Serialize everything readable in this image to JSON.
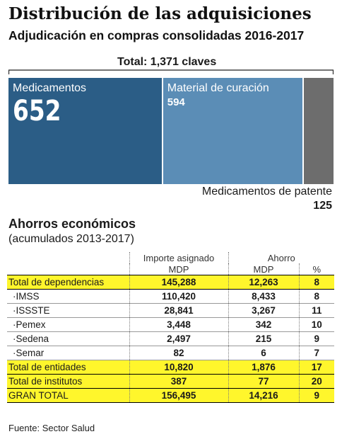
{
  "header": {
    "title": "Distribución de las adquisiciones",
    "subtitle": "Adjudicación en compras consolidadas 2016-2017",
    "total_label": "Total: 1,371 claves"
  },
  "chart_data": {
    "type": "bar",
    "title": "Distribución de las adquisiciones",
    "subtitle": "Adjudicación en compras consolidadas 2016-2017",
    "total": 1371,
    "categories": [
      "Medicamentos",
      "Material de curación",
      "Medicamentos de patente"
    ],
    "values": [
      652,
      594,
      125
    ],
    "display_values": [
      "652",
      "594",
      "125"
    ],
    "colors": [
      "#2b5d86",
      "#5b8db6",
      "#6d6d6d"
    ]
  },
  "savings": {
    "title": "Ahorros económicos",
    "subtitle": "(acumulados 2013-2017)",
    "col_importe": "Importe asignado",
    "col_ahorro": "Ahorro",
    "unit_importe": "MDP",
    "unit_ahorro": "MDP",
    "unit_pct": "%",
    "highlight_color": "#fff62c",
    "rows": [
      {
        "name": "Total de dependencias",
        "importe": "145,288",
        "ahorro": "12,263",
        "pct": "8",
        "highlight": true
      },
      {
        "name": "·IMSS",
        "importe": "110,420",
        "ahorro": "8,433",
        "pct": "8",
        "highlight": false
      },
      {
        "name": "·ISSSTE",
        "importe": "28,841",
        "ahorro": "3,267",
        "pct": "11",
        "highlight": false
      },
      {
        "name": "·Pemex",
        "importe": "3,448",
        "ahorro": "342",
        "pct": "10",
        "highlight": false
      },
      {
        "name": "·Sedena",
        "importe": "2,497",
        "ahorro": "215",
        "pct": "9",
        "highlight": false
      },
      {
        "name": "·Semar",
        "importe": "82",
        "ahorro": "6",
        "pct": "7",
        "highlight": false
      },
      {
        "name": "Total de entidades",
        "importe": "10,820",
        "ahorro": "1,876",
        "pct": "17",
        "highlight": true
      },
      {
        "name": "Total de institutos",
        "importe": "387",
        "ahorro": "77",
        "pct": "20",
        "highlight": true
      },
      {
        "name": "GRAN TOTAL",
        "importe": "156,495",
        "ahorro": "14,216",
        "pct": "9",
        "highlight": true
      }
    ]
  },
  "footer": {
    "source": "Fuente: Sector Salud"
  }
}
